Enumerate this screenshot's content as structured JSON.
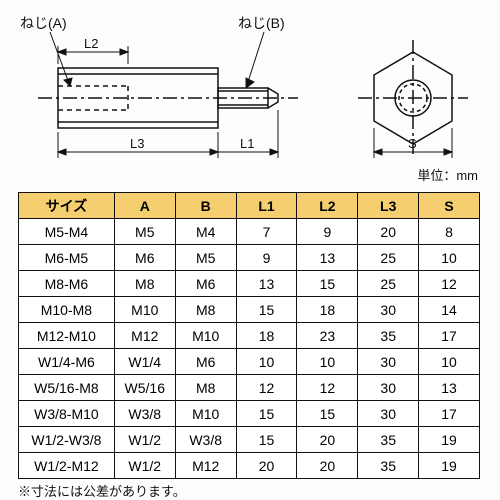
{
  "diagram": {
    "label_thread_a": "ねじ(A)",
    "label_thread_b": "ねじ(B)",
    "label_L1": "L1",
    "label_L2": "L2",
    "label_L3": "L3",
    "label_S": "S",
    "stroke": "#111111",
    "bg": "#fdfdfb",
    "fill": "#ffffff"
  },
  "unit_text": "単位：mm",
  "table": {
    "headers": [
      "サイズ",
      "A",
      "B",
      "L1",
      "L2",
      "L3",
      "S"
    ],
    "header_bg": "#f5ce6f",
    "rows": [
      [
        "M5-M4",
        "M5",
        "M4",
        "7",
        "9",
        "20",
        "8"
      ],
      [
        "M6-M5",
        "M6",
        "M5",
        "9",
        "13",
        "25",
        "10"
      ],
      [
        "M8-M6",
        "M8",
        "M6",
        "13",
        "15",
        "25",
        "12"
      ],
      [
        "M10-M8",
        "M10",
        "M8",
        "15",
        "18",
        "30",
        "14"
      ],
      [
        "M12-M10",
        "M12",
        "M10",
        "18",
        "23",
        "35",
        "17"
      ],
      [
        "W1/4-M6",
        "W1/4",
        "M6",
        "10",
        "10",
        "30",
        "10"
      ],
      [
        "W5/16-M8",
        "W5/16",
        "M8",
        "12",
        "12",
        "30",
        "13"
      ],
      [
        "W3/8-M10",
        "W3/8",
        "M10",
        "15",
        "15",
        "30",
        "17"
      ],
      [
        "W1/2-W3/8",
        "W1/2",
        "W3/8",
        "15",
        "20",
        "35",
        "19"
      ],
      [
        "W1/2-M12",
        "W1/2",
        "M12",
        "20",
        "20",
        "35",
        "19"
      ]
    ]
  },
  "footnote": "※寸法には公差があります。"
}
